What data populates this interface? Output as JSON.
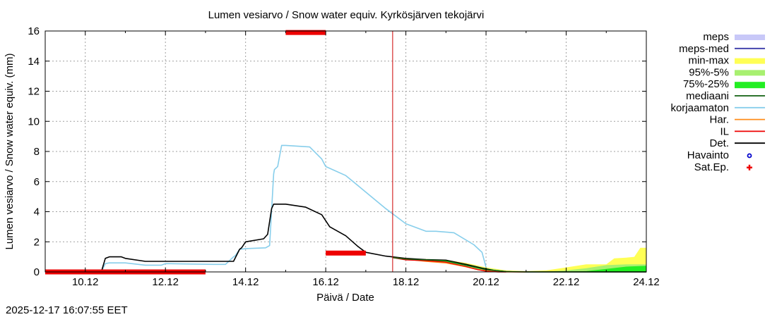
{
  "chart_data": {
    "type": "line",
    "title": "Lumen vesiarvo / Snow water equiv.  Kyrkösjärven tekojärvi",
    "xlabel": "Päivä / Date",
    "ylabel": "Lumen vesiarvo / Snow water equiv. (mm)",
    "timestamp": "2025-12-17 16:07:55 EET",
    "x_unit": "days since 2025-12-09 00:00",
    "xlim": [
      0,
      15
    ],
    "ylim": [
      0,
      16
    ],
    "yticks": [
      0,
      2,
      4,
      6,
      8,
      10,
      12,
      14,
      16
    ],
    "xticks": [
      {
        "x": 1,
        "label": "10.12"
      },
      {
        "x": 3,
        "label": "12.12"
      },
      {
        "x": 5,
        "label": "14.12"
      },
      {
        "x": 7,
        "label": "16.12"
      },
      {
        "x": 9,
        "label": "18.12"
      },
      {
        "x": 11,
        "label": "20.12"
      },
      {
        "x": 13,
        "label": "22.12"
      },
      {
        "x": 15,
        "label": "24.12"
      }
    ],
    "grid": true,
    "now_line_x": 8.67,
    "colors": {
      "meps": "#c8c8f8",
      "meps_med": "#3a3aa8",
      "min_max": "#ffff55",
      "p95_5": "#a8f070",
      "p75_25": "#22ee22",
      "mediaani": "#106010",
      "korjaamaton": "#87ceeb",
      "har": "#ff8c1a",
      "il": "#ee0000",
      "det": "#000000",
      "havainto": "#0000cc",
      "sat_ep": "#ee0000",
      "now_line": "#cc0000",
      "grid": "#a0a0a0"
    },
    "legend": {
      "position": "right",
      "entries": [
        {
          "key": "meps",
          "label": "meps",
          "style": "band"
        },
        {
          "key": "meps_med",
          "label": "meps-med",
          "style": "line"
        },
        {
          "key": "min_max",
          "label": "min-max",
          "style": "band"
        },
        {
          "key": "p95_5",
          "label": "95%-5%",
          "style": "band"
        },
        {
          "key": "p75_25",
          "label": "75%-25%",
          "style": "band"
        },
        {
          "key": "mediaani",
          "label": "mediaani",
          "style": "line"
        },
        {
          "key": "korjaamaton",
          "label": "korjaamaton",
          "style": "line"
        },
        {
          "key": "har",
          "label": "Har.",
          "style": "line"
        },
        {
          "key": "il",
          "label": "IL",
          "style": "line"
        },
        {
          "key": "det",
          "label": "Det.",
          "style": "line"
        },
        {
          "key": "havainto",
          "label": "Havainto",
          "style": "circle"
        },
        {
          "key": "sat_ep",
          "label": "Sat.Ep.",
          "style": "plus"
        }
      ]
    },
    "series": [
      {
        "name": "korjaamaton",
        "x": [
          0.0,
          1.4,
          1.5,
          1.6,
          2.0,
          2.5,
          2.9,
          3.0,
          4.2,
          4.5,
          4.7,
          4.75,
          4.85,
          5.0,
          5.5,
          5.6,
          5.7,
          5.72,
          5.8,
          5.9,
          6.0,
          6.6,
          6.9,
          7.0,
          7.5,
          8.0,
          8.5,
          9.0,
          9.5,
          9.75,
          10.2,
          10.7,
          10.9,
          11.0
        ],
        "y": [
          0.0,
          0.0,
          0.55,
          0.6,
          0.6,
          0.45,
          0.45,
          0.55,
          0.5,
          0.5,
          1.0,
          1.1,
          1.5,
          1.55,
          1.6,
          1.75,
          6.5,
          6.8,
          7.0,
          8.4,
          8.4,
          8.3,
          7.5,
          7.0,
          6.4,
          5.3,
          4.2,
          3.2,
          2.7,
          2.7,
          2.6,
          1.8,
          1.3,
          0.3
        ]
      },
      {
        "name": "Det.",
        "x": [
          0.0,
          1.4,
          1.5,
          1.6,
          1.9,
          2.0,
          2.5,
          2.7,
          3.0,
          4.7,
          4.85,
          4.9,
          5.0,
          5.45,
          5.55,
          5.65,
          5.7,
          6.0,
          6.5,
          6.9,
          7.1,
          7.5,
          7.8,
          8.0,
          8.5,
          9.0,
          9.5,
          10.0,
          10.5,
          10.9,
          11.2,
          11.5,
          11.8,
          15.0
        ],
        "y": [
          0.0,
          0.0,
          0.9,
          1.0,
          1.0,
          0.9,
          0.7,
          0.7,
          0.7,
          0.7,
          1.5,
          1.6,
          2.0,
          2.2,
          2.5,
          4.2,
          4.5,
          4.5,
          4.3,
          3.8,
          3.0,
          2.4,
          1.7,
          1.3,
          1.05,
          0.9,
          0.82,
          0.78,
          0.5,
          0.25,
          0.1,
          0.02,
          0.0,
          0.0
        ]
      },
      {
        "name": "Har.",
        "x": [
          8.67,
          9.0,
          9.5,
          10.0,
          10.5,
          10.8,
          11.0,
          11.2,
          11.5,
          11.8,
          12.0
        ],
        "y": [
          0.95,
          0.85,
          0.7,
          0.6,
          0.35,
          0.15,
          0.08,
          0.03,
          0.0,
          0.0,
          0.0
        ]
      },
      {
        "name": "IL",
        "x": [
          8.67,
          9.0,
          9.5,
          10.0,
          10.5,
          10.8,
          11.0,
          11.3,
          11.5
        ],
        "y": [
          0.95,
          0.8,
          0.75,
          0.65,
          0.35,
          0.15,
          0.05,
          0.0,
          0.0
        ]
      },
      {
        "name": "mediaani",
        "x": [
          8.67,
          9.0,
          9.5,
          10.0,
          10.5,
          11.0,
          11.5,
          12.0,
          13.0,
          14.0,
          15.0
        ],
        "y": [
          0.95,
          0.85,
          0.8,
          0.75,
          0.45,
          0.15,
          0.03,
          0.0,
          0.0,
          0.0,
          0.0
        ]
      }
    ],
    "bands": [
      {
        "name": "min-max",
        "x": [
          8.67,
          9.0,
          9.5,
          10.0,
          10.5,
          11.0,
          11.5,
          12.0,
          12.5,
          13.0,
          13.5,
          14.0,
          14.2,
          14.5,
          14.7,
          14.85,
          15.0
        ],
        "low": [
          0.95,
          0.8,
          0.72,
          0.6,
          0.3,
          0.05,
          0.0,
          0.0,
          0.0,
          0.0,
          0.0,
          0.0,
          0.0,
          0.0,
          0.0,
          0.0,
          0.0
        ],
        "high": [
          0.95,
          0.9,
          0.85,
          0.8,
          0.6,
          0.3,
          0.1,
          0.05,
          0.1,
          0.3,
          0.5,
          0.5,
          0.9,
          0.95,
          1.0,
          1.6,
          1.6
        ]
      },
      {
        "name": "95%-5%",
        "x": [
          8.67,
          9.0,
          9.5,
          10.0,
          10.5,
          11.0,
          11.5,
          12.0,
          12.5,
          13.0,
          13.5,
          14.0,
          14.5,
          15.0
        ],
        "low": [
          0.95,
          0.82,
          0.74,
          0.63,
          0.34,
          0.08,
          0.0,
          0.0,
          0.0,
          0.0,
          0.0,
          0.0,
          0.0,
          0.0
        ],
        "high": [
          0.95,
          0.88,
          0.83,
          0.78,
          0.55,
          0.25,
          0.06,
          0.0,
          0.03,
          0.1,
          0.25,
          0.45,
          0.5,
          0.5
        ]
      },
      {
        "name": "75%-25%",
        "x": [
          8.67,
          9.0,
          9.5,
          10.0,
          10.5,
          11.0,
          11.5,
          12.0,
          13.0,
          13.5,
          14.0,
          14.5,
          15.0
        ],
        "low": [
          0.95,
          0.84,
          0.77,
          0.68,
          0.4,
          0.12,
          0.02,
          0.0,
          0.0,
          0.0,
          0.0,
          0.0,
          0.0
        ],
        "high": [
          0.95,
          0.86,
          0.81,
          0.74,
          0.48,
          0.18,
          0.04,
          0.0,
          0.02,
          0.05,
          0.2,
          0.35,
          0.4
        ]
      }
    ],
    "sat_ep_segments": [
      {
        "x0": 0.0,
        "x1": 4.0,
        "y": 0.0
      },
      {
        "x0": 6.0,
        "x1": 7.0,
        "y": 15.9
      },
      {
        "x0": 7.0,
        "x1": 8.0,
        "y": 1.25
      }
    ]
  }
}
